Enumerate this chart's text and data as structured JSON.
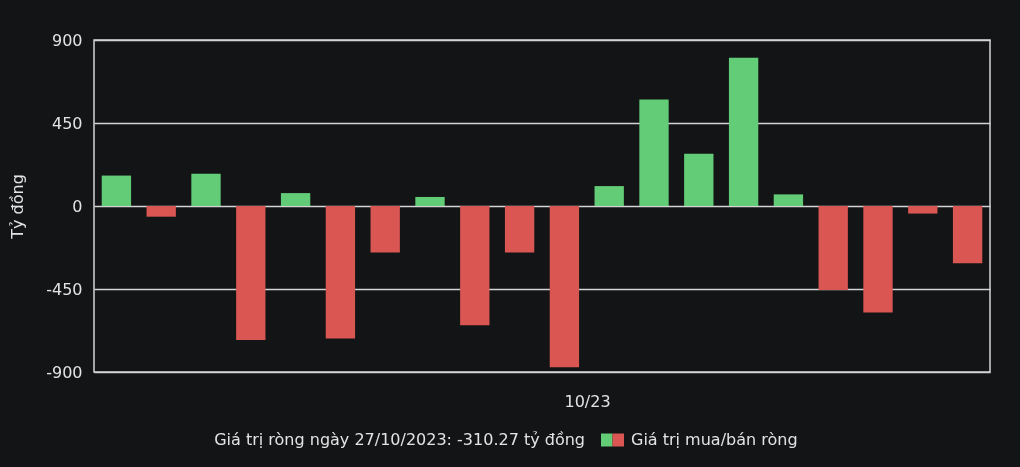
{
  "chart_data": {
    "type": "bar",
    "xlabel": "10/23",
    "ylabel": "Tỷ đồng",
    "categories": [
      null,
      null,
      null,
      null,
      null,
      null,
      null,
      null,
      null,
      null,
      null,
      null,
      null,
      null,
      null,
      null,
      null,
      null,
      null,
      null
    ],
    "series": [
      {
        "name": "Giá trị mua/bán ròng",
        "values": [
          165,
          -58,
          175,
          -726,
          70,
          -719,
          -252,
          49,
          -647,
          -252,
          -874,
          108,
          577,
          283,
          804,
          63,
          -456,
          -577,
          -41,
          -310
        ],
        "colors": [
          "#63cc77",
          "#d95652",
          "#63cc77",
          "#d95652",
          "#63cc77",
          "#d95652",
          "#d95652",
          "#63cc77",
          "#d95652",
          "#d95652",
          "#d95652",
          "#63cc77",
          "#63cc77",
          "#63cc77",
          "#63cc77",
          "#63cc77",
          "#d95652",
          "#d95652",
          "#d95652",
          "#d95652"
        ]
      }
    ],
    "ylim": [
      -900,
      900
    ],
    "yticks": [
      -900,
      -450,
      0,
      450,
      900
    ],
    "grid": "y",
    "legend": "bottom",
    "annotations": [
      "Giá trị ròng ngày 27/10/2023: -310.27 tỷ đồng"
    ]
  }
}
